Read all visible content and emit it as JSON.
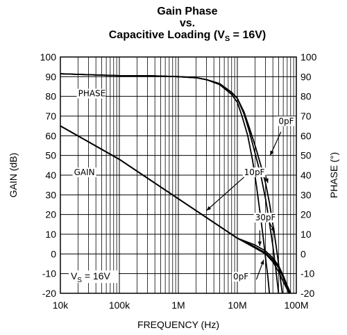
{
  "chart_data": {
    "type": "line",
    "title_line1": "Gain Phase",
    "title_line2": "vs.",
    "title_line3_prefix": "Capacitive Loading (V",
    "title_line3_sub": "S",
    "title_line3_suffix": " = 16V)",
    "xlabel": "FREQUENCY (Hz)",
    "ylabel_left": "GAIN (dB)",
    "ylabel_right": "PHASE (°)",
    "x_scale": "log",
    "xlim": [
      10000,
      100000000
    ],
    "ylim": [
      -20,
      100
    ],
    "grid": true,
    "x_ticks": [
      {
        "value": 10000,
        "label": "10k"
      },
      {
        "value": 100000,
        "label": "100k"
      },
      {
        "value": 1000000,
        "label": "1M"
      },
      {
        "value": 10000000,
        "label": "10M"
      },
      {
        "value": 100000000,
        "label": "100M"
      }
    ],
    "y_ticks": [
      -20,
      -10,
      0,
      10,
      20,
      30,
      40,
      50,
      60,
      70,
      80,
      90,
      100
    ],
    "series": [
      {
        "group": "phase",
        "name": "0pF",
        "points": [
          [
            10000,
            91.5
          ],
          [
            30000,
            91
          ],
          [
            100000,
            90.5
          ],
          [
            300000,
            90.5
          ],
          [
            1000000,
            90
          ],
          [
            2000000,
            89.5
          ],
          [
            3000000,
            88.5
          ],
          [
            5000000,
            86.5
          ],
          [
            8000000,
            82
          ],
          [
            10000000,
            79
          ],
          [
            13000000,
            72
          ],
          [
            16000000,
            64
          ],
          [
            20000000,
            55
          ],
          [
            25000000,
            45
          ],
          [
            30000000,
            36
          ],
          [
            35000000,
            26
          ],
          [
            40000000,
            15
          ],
          [
            45000000,
            5
          ],
          [
            50000000,
            -5
          ],
          [
            55000000,
            -15
          ],
          [
            58000000,
            -20
          ]
        ]
      },
      {
        "group": "phase",
        "name": "10pF",
        "points": [
          [
            10000,
            91.5
          ],
          [
            30000,
            91
          ],
          [
            100000,
            90.5
          ],
          [
            300000,
            90.5
          ],
          [
            1000000,
            90
          ],
          [
            2000000,
            89.5
          ],
          [
            3000000,
            88.5
          ],
          [
            5000000,
            86.5
          ],
          [
            8000000,
            82
          ],
          [
            10000000,
            79
          ],
          [
            13000000,
            71
          ],
          [
            16000000,
            62
          ],
          [
            20000000,
            51
          ],
          [
            25000000,
            40
          ],
          [
            30000000,
            28
          ],
          [
            35000000,
            16
          ],
          [
            40000000,
            4
          ],
          [
            45000000,
            -8
          ],
          [
            50000000,
            -20
          ]
        ]
      },
      {
        "group": "phase",
        "name": "30pF",
        "points": [
          [
            10000,
            91.5
          ],
          [
            30000,
            91
          ],
          [
            100000,
            90.5
          ],
          [
            300000,
            90.5
          ],
          [
            1000000,
            90
          ],
          [
            2000000,
            89.5
          ],
          [
            3000000,
            88.5
          ],
          [
            5000000,
            86
          ],
          [
            8000000,
            81
          ],
          [
            10000000,
            77
          ],
          [
            12000000,
            70
          ],
          [
            15000000,
            60
          ],
          [
            18000000,
            48
          ],
          [
            21000000,
            35
          ],
          [
            24000000,
            22
          ],
          [
            27000000,
            10
          ],
          [
            30000000,
            -2
          ],
          [
            33000000,
            -12
          ],
          [
            35000000,
            -20
          ]
        ]
      },
      {
        "group": "gain",
        "name": "0pF",
        "points": [
          [
            10000,
            65
          ],
          [
            100000,
            48
          ],
          [
            1000000,
            28
          ],
          [
            10000000,
            8
          ],
          [
            20000000,
            3
          ],
          [
            30000000,
            0
          ],
          [
            40000000,
            -4
          ],
          [
            50000000,
            -9
          ],
          [
            60000000,
            -14
          ],
          [
            70000000,
            -18
          ],
          [
            75000000,
            -20
          ]
        ]
      },
      {
        "group": "gain",
        "name": "10pF",
        "points": [
          [
            10000,
            65
          ],
          [
            100000,
            48
          ],
          [
            1000000,
            28
          ],
          [
            10000000,
            8
          ],
          [
            20000000,
            3.5
          ],
          [
            30000000,
            0.5
          ],
          [
            40000000,
            -3
          ],
          [
            50000000,
            -7
          ],
          [
            60000000,
            -12
          ],
          [
            70000000,
            -17
          ],
          [
            78000000,
            -20
          ]
        ]
      },
      {
        "group": "gain",
        "name": "30pF",
        "points": [
          [
            10000,
            65
          ],
          [
            100000,
            48
          ],
          [
            1000000,
            28
          ],
          [
            10000000,
            8
          ],
          [
            20000000,
            4.5
          ],
          [
            30000000,
            1.5
          ],
          [
            40000000,
            -2
          ],
          [
            50000000,
            -6
          ],
          [
            60000000,
            -11
          ],
          [
            70000000,
            -16
          ],
          [
            80000000,
            -20
          ]
        ]
      }
    ],
    "annotations": [
      {
        "text": "PHASE",
        "at": [
          20000,
          80
        ]
      },
      {
        "text": "GAIN",
        "at": [
          17000,
          40
        ]
      },
      {
        "text": "0pF",
        "at": [
          50000000,
          66
        ]
      },
      {
        "text": "10pF",
        "at": [
          13000000,
          40
        ]
      },
      {
        "text": "30pF",
        "at": [
          20000000,
          17
        ]
      },
      {
        "text": "0pF",
        "at": [
          8500000,
          -13
        ]
      }
    ],
    "vs_label_prefix": "V",
    "vs_label_sub": "S",
    "vs_label_suffix": " = 16V"
  }
}
